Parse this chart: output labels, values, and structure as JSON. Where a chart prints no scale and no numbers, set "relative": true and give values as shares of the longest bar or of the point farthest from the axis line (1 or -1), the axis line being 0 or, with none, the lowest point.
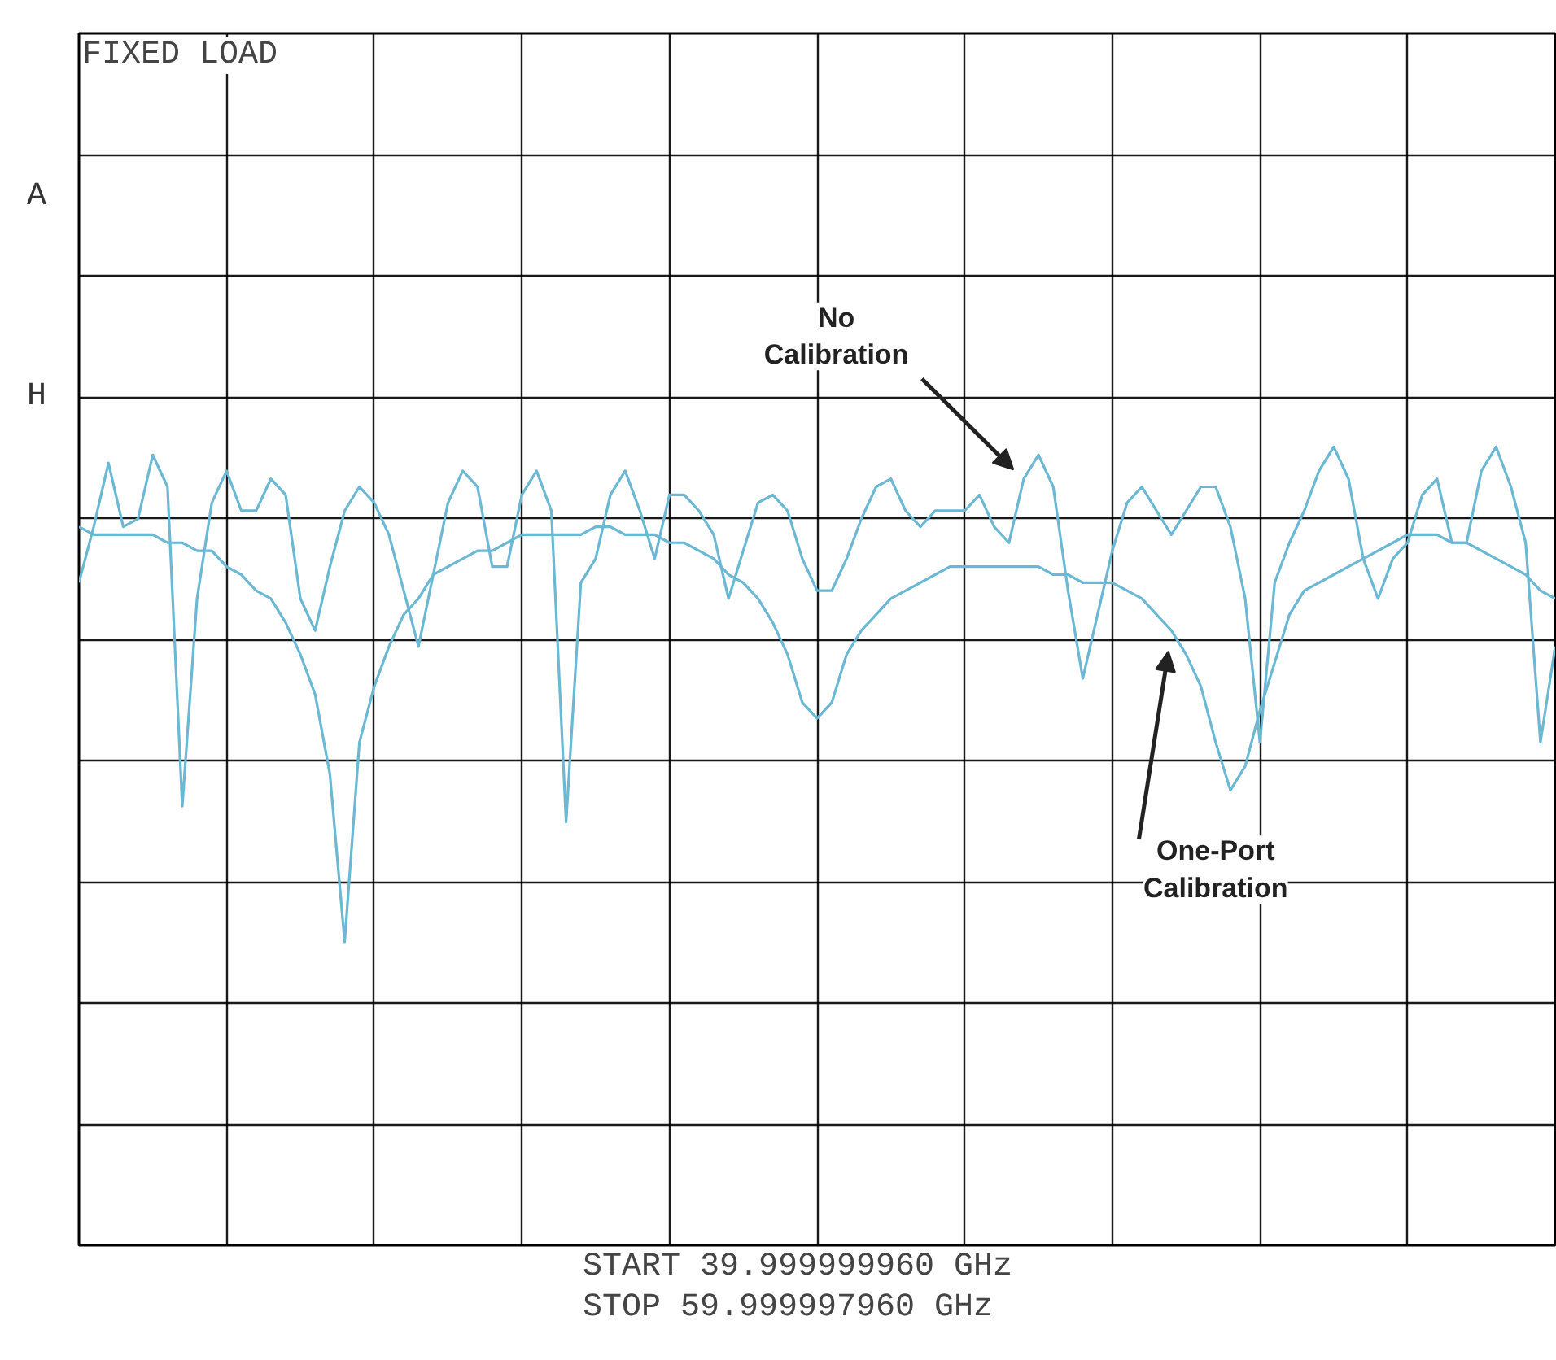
{
  "chart_data": {
    "type": "line",
    "title": "FIXED LOAD",
    "relative": true,
    "grid": true,
    "categories": [
      null,
      null,
      null,
      null,
      null,
      null,
      null,
      null,
      null,
      null,
      null,
      null,
      null,
      null,
      null,
      null,
      null,
      null,
      null,
      null,
      null,
      null,
      null,
      null,
      null,
      null,
      null,
      null,
      null,
      null,
      null,
      null,
      null,
      null,
      null,
      null,
      null,
      null,
      null,
      null,
      null,
      null,
      null,
      null,
      null,
      null,
      null,
      null,
      null,
      null,
      null,
      null,
      null,
      null,
      null,
      null,
      null,
      null,
      null,
      null,
      null,
      null,
      null,
      null,
      null,
      null,
      null,
      null,
      null,
      null,
      null,
      null,
      null,
      null,
      null,
      null,
      null,
      null,
      null,
      null,
      null,
      null,
      null,
      null,
      null,
      null,
      null,
      null,
      null,
      null,
      null,
      null,
      null,
      null,
      null,
      null,
      null,
      null,
      null,
      null,
      null
    ],
    "series": [
      {
        "name": "No Calibration",
        "color": "#6bb8d4",
        "values": [
          0.83,
          0.9,
          0.98,
          0.9,
          0.91,
          0.99,
          0.95,
          0.55,
          0.81,
          0.93,
          0.97,
          0.92,
          0.92,
          0.96,
          0.94,
          0.81,
          0.77,
          0.85,
          0.92,
          0.95,
          0.93,
          0.89,
          0.82,
          0.75,
          0.84,
          0.93,
          0.97,
          0.95,
          0.85,
          0.85,
          0.94,
          0.97,
          0.92,
          0.53,
          0.83,
          0.86,
          0.94,
          0.97,
          0.92,
          0.86,
          0.94,
          0.94,
          0.92,
          0.89,
          0.81,
          0.87,
          0.93,
          0.94,
          0.92,
          0.86,
          0.82,
          0.82,
          0.86,
          0.91,
          0.95,
          0.96,
          0.92,
          0.9,
          0.92,
          0.92,
          0.92,
          0.94,
          0.9,
          0.88,
          0.96,
          0.99,
          0.95,
          0.82,
          0.71,
          0.79,
          0.87,
          0.93,
          0.95,
          0.92,
          0.89,
          0.92,
          0.95,
          0.95,
          0.9,
          0.81,
          0.63,
          0.83,
          0.88,
          0.92,
          0.97,
          1.0,
          0.96,
          0.86,
          0.81,
          0.86,
          0.88,
          0.94,
          0.96,
          0.88,
          0.88,
          0.97,
          1.0,
          0.95,
          0.88,
          0.63,
          0.75
        ]
      },
      {
        "name": "One-Port Calibration",
        "color": "#6bb8d4",
        "values": [
          0.9,
          0.89,
          0.89,
          0.89,
          0.89,
          0.89,
          0.88,
          0.88,
          0.87,
          0.87,
          0.85,
          0.84,
          0.82,
          0.81,
          0.78,
          0.74,
          0.69,
          0.59,
          0.38,
          0.63,
          0.7,
          0.75,
          0.79,
          0.81,
          0.84,
          0.85,
          0.86,
          0.87,
          0.87,
          0.88,
          0.89,
          0.89,
          0.89,
          0.89,
          0.89,
          0.9,
          0.9,
          0.89,
          0.89,
          0.89,
          0.88,
          0.88,
          0.87,
          0.86,
          0.84,
          0.83,
          0.81,
          0.78,
          0.74,
          0.68,
          0.66,
          0.68,
          0.74,
          0.77,
          0.79,
          0.81,
          0.82,
          0.83,
          0.84,
          0.85,
          0.85,
          0.85,
          0.85,
          0.85,
          0.85,
          0.85,
          0.84,
          0.84,
          0.83,
          0.83,
          0.83,
          0.82,
          0.81,
          0.79,
          0.77,
          0.74,
          0.7,
          0.63,
          0.57,
          0.6,
          0.67,
          0.73,
          0.79,
          0.82,
          0.83,
          0.84,
          0.85,
          0.86,
          0.87,
          0.88,
          0.89,
          0.89,
          0.89,
          0.88,
          0.88,
          0.87,
          0.86,
          0.85,
          0.84,
          0.82,
          0.81
        ]
      }
    ],
    "annotations": [
      "A",
      "H",
      "START   39.999999960 GHz",
      "STOP    59.999997960 GHz"
    ]
  }
}
